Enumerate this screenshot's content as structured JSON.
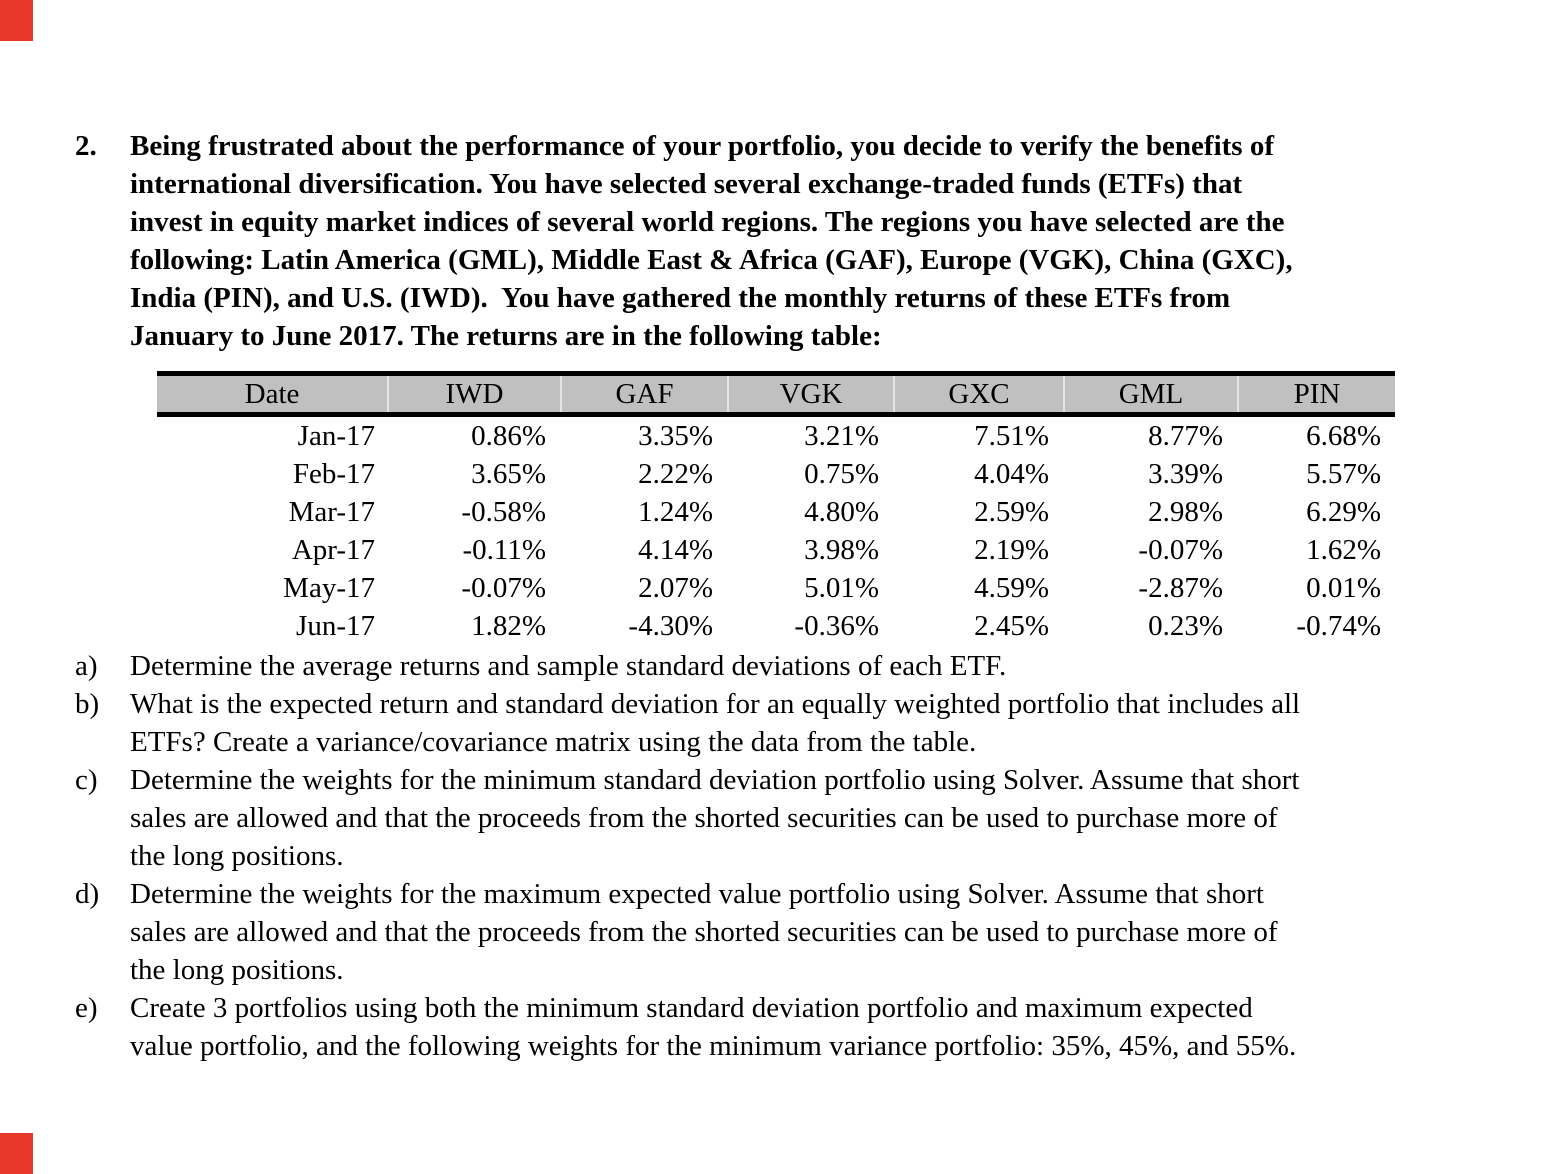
{
  "page": {
    "corner_marks_color": "#e8382b"
  },
  "problem": {
    "number": "2.",
    "lines": [
      "Being frustrated about the performance of your portfolio, you decide to verify the benefits of",
      "international diversification. You have selected several exchange-traded funds (ETFs) that",
      "invest in equity market indices of several world regions. The regions you have selected are the",
      "following: Latin America (GML), Middle East & Africa (GAF), Europe (VGK), China (GXC),",
      "India (PIN), and U.S. (IWD).  You have gathered the monthly returns of these ETFs from",
      "January to June 2017. The returns are in the following table:"
    ]
  },
  "table": {
    "header_bg": "#c0c0c0",
    "border_color": "#000000",
    "columns": [
      "Date",
      "IWD",
      "GAF",
      "VGK",
      "GXC",
      "GML",
      "PIN"
    ],
    "rows": [
      {
        "date": "Jan-17",
        "values": [
          "0.86%",
          "3.35%",
          "3.21%",
          "7.51%",
          "8.77%",
          "6.68%"
        ]
      },
      {
        "date": "Feb-17",
        "values": [
          "3.65%",
          "2.22%",
          "0.75%",
          "4.04%",
          "3.39%",
          "5.57%"
        ]
      },
      {
        "date": "Mar-17",
        "values": [
          "-0.58%",
          "1.24%",
          "4.80%",
          "2.59%",
          "2.98%",
          "6.29%"
        ]
      },
      {
        "date": "Apr-17",
        "values": [
          "-0.11%",
          "4.14%",
          "3.98%",
          "2.19%",
          "-0.07%",
          "1.62%"
        ]
      },
      {
        "date": "May-17",
        "values": [
          "-0.07%",
          "2.07%",
          "5.01%",
          "4.59%",
          "-2.87%",
          "0.01%"
        ]
      },
      {
        "date": "Jun-17",
        "values": [
          "1.82%",
          "-4.30%",
          "-0.36%",
          "2.45%",
          "0.23%",
          "-0.74%"
        ]
      }
    ]
  },
  "questions": {
    "items": [
      {
        "label": "a)",
        "lines": [
          "Determine the average returns and sample standard deviations of each ETF."
        ]
      },
      {
        "label": "b)",
        "lines": [
          "What is the expected return and standard deviation for an equally weighted portfolio that includes all",
          "ETFs? Create a variance/covariance matrix using the data from the table."
        ]
      },
      {
        "label": "c)",
        "lines": [
          "Determine the weights for the minimum standard deviation portfolio using Solver. Assume that short",
          "sales are allowed and that the proceeds from the shorted securities can be used to purchase more of",
          "the long positions."
        ]
      },
      {
        "label": "d)",
        "lines": [
          "Determine the weights for the maximum expected value portfolio using Solver. Assume that short",
          "sales are allowed and that the proceeds from the shorted securities can be used to purchase more of",
          "the long positions."
        ]
      },
      {
        "label": "e)",
        "lines": [
          "Create 3 portfolios using both the minimum standard deviation portfolio and maximum expected",
          "value portfolio, and the following weights for the minimum variance portfolio: 35%, 45%, and 55%."
        ]
      }
    ]
  }
}
